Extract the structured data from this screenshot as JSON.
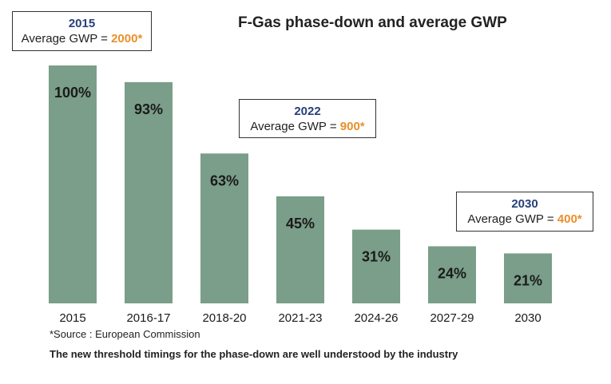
{
  "title": "F-Gas phase-down and average GWP",
  "callouts": [
    {
      "year": "2015",
      "label": "Average GWP = ",
      "value": "2000*"
    },
    {
      "year": "2022",
      "label": "Average GWP = ",
      "value": "900*"
    },
    {
      "year": "2030",
      "label": "Average GWP = ",
      "value": "400*"
    }
  ],
  "source": "*Source : European Commission",
  "caption": "The new threshold timings for the phase-down are well understood by the industry",
  "colors": {
    "bar": "#7a9e89",
    "year": "#27407a",
    "gwp_value": "#e8902a"
  },
  "chart_data": {
    "type": "bar",
    "title": "F-Gas phase-down and average GWP",
    "categories": [
      "2015",
      "2016-17",
      "2018-20",
      "2021-23",
      "2024-26",
      "2027-29",
      "2030"
    ],
    "values": [
      100,
      93,
      63,
      45,
      31,
      24,
      21
    ],
    "data_labels": [
      "100%",
      "93%",
      "63%",
      "45%",
      "31%",
      "24%",
      "21%"
    ],
    "xlabel": "",
    "ylabel": "",
    "ylim": [
      0,
      100
    ],
    "grid": false,
    "legend": "none"
  }
}
